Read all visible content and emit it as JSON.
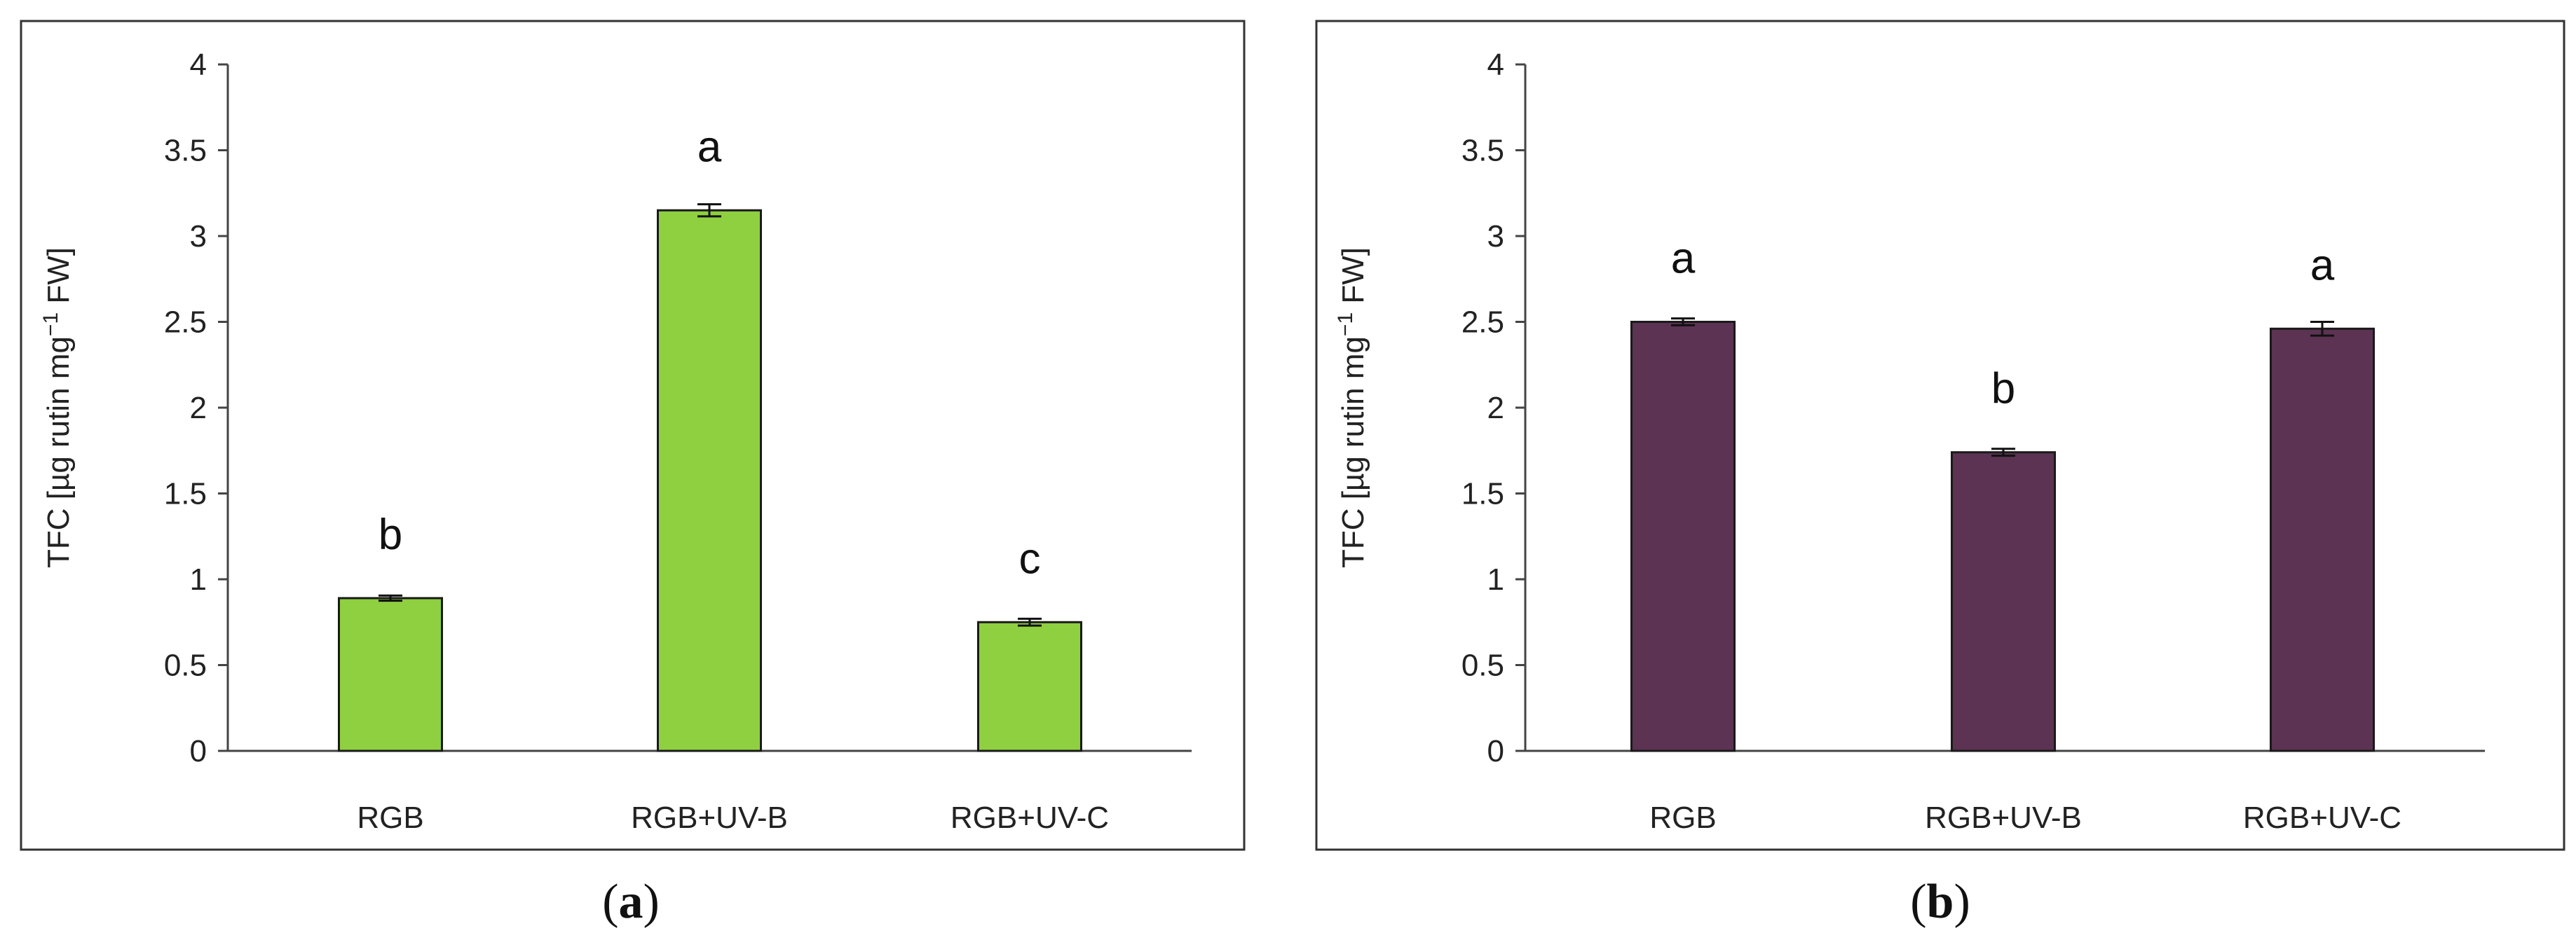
{
  "chart_data": [
    {
      "panel": "a",
      "type": "bar",
      "categories": [
        "RGB",
        "RGB+UV-B",
        "RGB+UV-C"
      ],
      "values": [
        0.89,
        3.15,
        0.75
      ],
      "errors": [
        0.015,
        0.035,
        0.02
      ],
      "significance": [
        "b",
        "a",
        "c"
      ],
      "ylabel_main": "TFC [µg rutin mg",
      "ylabel_sup": "−1",
      "ylabel_tail": " FW]",
      "ylim": [
        0,
        4
      ],
      "yticks": [
        "0",
        "0.5",
        "1",
        "1.5",
        "2",
        "2.5",
        "3",
        "3.5",
        "4"
      ],
      "grid": false,
      "bar_color": "#8ed03f",
      "caption_open": "(",
      "caption_letter": "a",
      "caption_close": ")"
    },
    {
      "panel": "b",
      "type": "bar",
      "categories": [
        "RGB",
        "RGB+UV-B",
        "RGB+UV-C"
      ],
      "values": [
        2.5,
        1.74,
        2.46
      ],
      "errors": [
        0.02,
        0.02,
        0.04
      ],
      "significance": [
        "a",
        "b",
        "a"
      ],
      "ylabel_main": "TFC [µg rutin mg",
      "ylabel_sup": "−1",
      "ylabel_tail": " FW]",
      "ylim": [
        0,
        4
      ],
      "yticks": [
        "0",
        "0.5",
        "1",
        "1.5",
        "2",
        "2.5",
        "3",
        "3.5",
        "4"
      ],
      "grid": false,
      "bar_color": "#5c3353",
      "caption_open": "(",
      "caption_letter": "b",
      "caption_close": ")"
    }
  ]
}
